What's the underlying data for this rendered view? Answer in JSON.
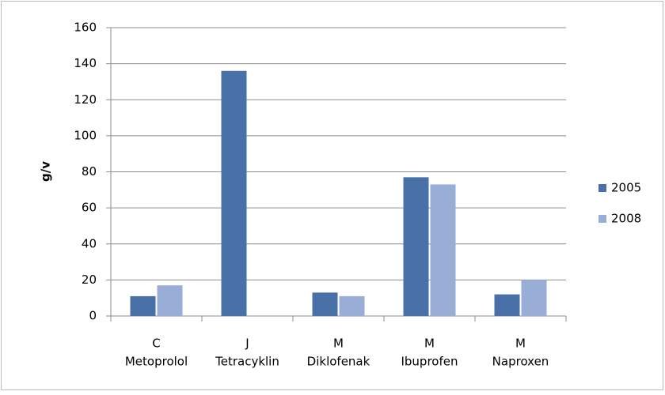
{
  "chart_data": {
    "type": "bar",
    "ylabel": "g/v",
    "categories": [
      [
        "C",
        "Metoprolol"
      ],
      [
        "J",
        "Tetracyklin"
      ],
      [
        "M",
        "Diklofenak"
      ],
      [
        "M",
        "Ibuprofen"
      ],
      [
        "M",
        "Naproxen"
      ]
    ],
    "series": [
      {
        "name": "2005",
        "color": "#4a70a8",
        "values": [
          11,
          136,
          13,
          77,
          12
        ]
      },
      {
        "name": "2008",
        "color": "#98aed6",
        "values": [
          17,
          null,
          11,
          73,
          20
        ]
      }
    ],
    "ylim": [
      0,
      160
    ],
    "yticks": [
      0,
      20,
      40,
      60,
      80,
      100,
      120,
      140,
      160
    ],
    "grid": true,
    "legend": "right"
  }
}
